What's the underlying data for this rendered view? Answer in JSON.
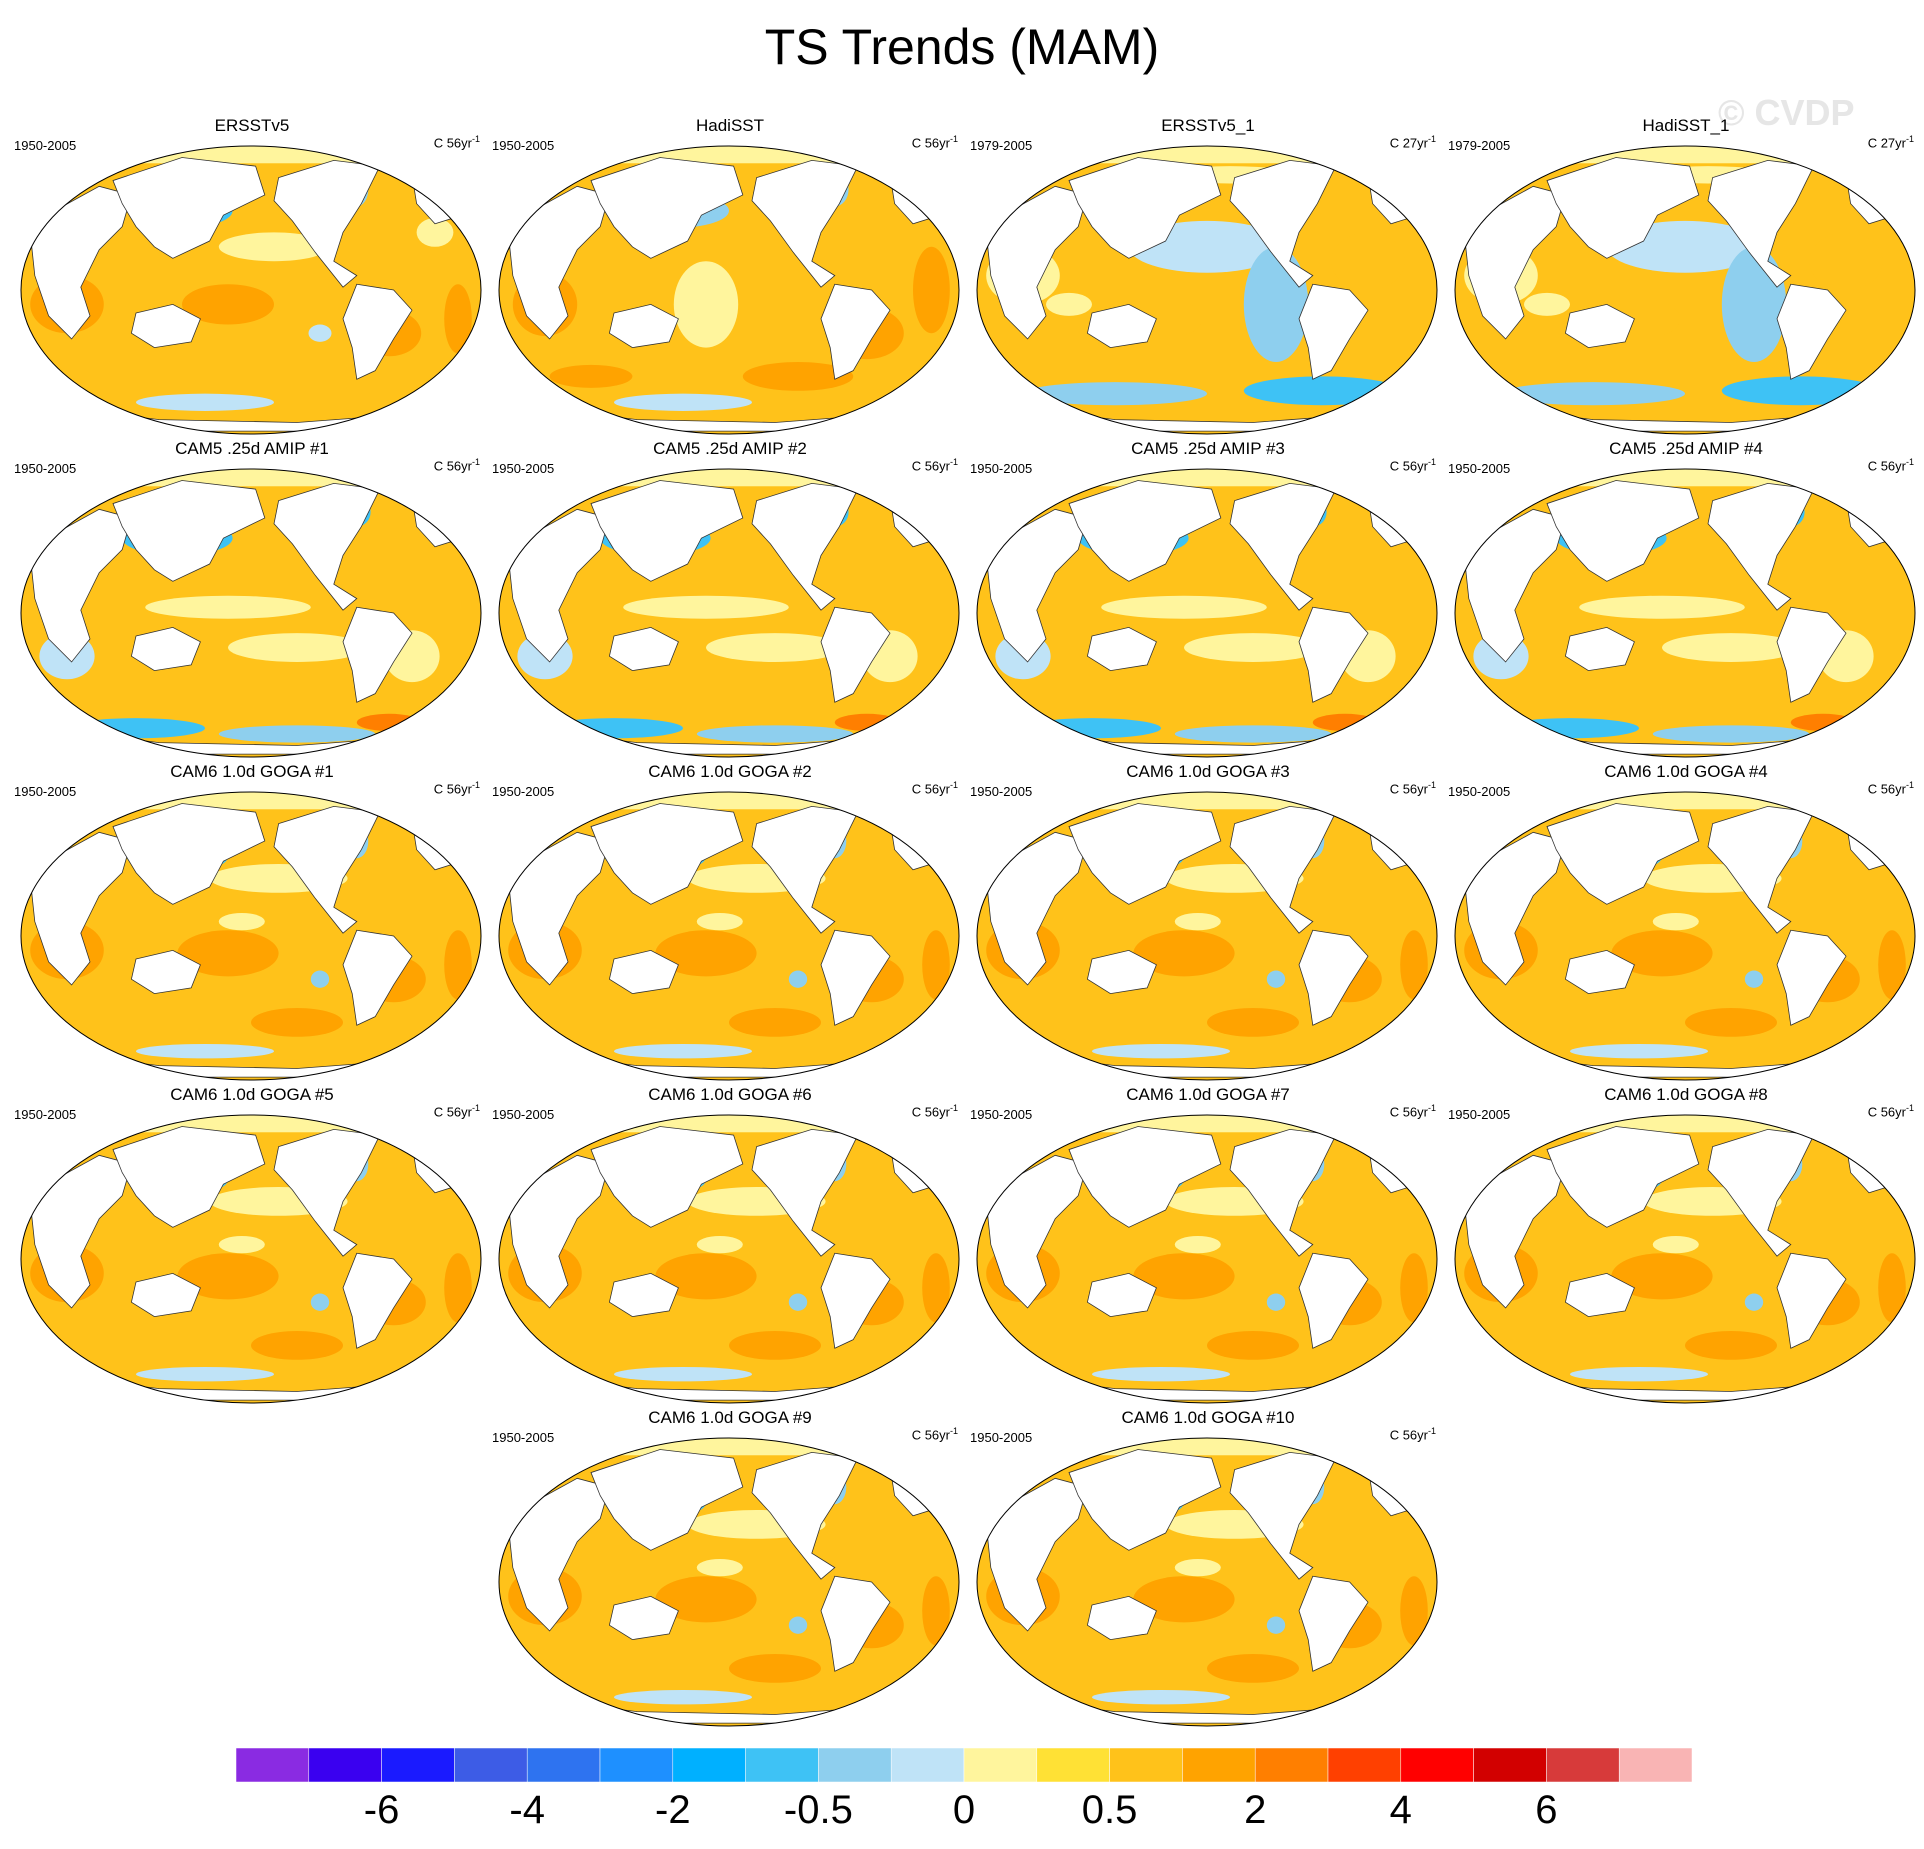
{
  "title": "TS Trends (MAM)",
  "watermark": "© CVDP",
  "panels": [
    {
      "title": "ERSSTv5",
      "period": "1950-2005",
      "units": "C 56yr",
      "units_exp": "-1",
      "pattern": "obs1"
    },
    {
      "title": "HadiSST",
      "period": "1950-2005",
      "units": "C 56yr",
      "units_exp": "-1",
      "pattern": "obs2"
    },
    {
      "title": "ERSSTv5_1",
      "period": "1979-2005",
      "units": "C 27yr",
      "units_exp": "-1",
      "pattern": "short"
    },
    {
      "title": "HadiSST_1",
      "period": "1979-2005",
      "units": "C 27yr",
      "units_exp": "-1",
      "pattern": "short"
    },
    {
      "title": "CAM5 .25d AMIP #1",
      "period": "1950-2005",
      "units": "C 56yr",
      "units_exp": "-1",
      "pattern": "amip"
    },
    {
      "title": "CAM5 .25d AMIP #2",
      "period": "1950-2005",
      "units": "C 56yr",
      "units_exp": "-1",
      "pattern": "amip"
    },
    {
      "title": "CAM5 .25d AMIP #3",
      "period": "1950-2005",
      "units": "C 56yr",
      "units_exp": "-1",
      "pattern": "amip"
    },
    {
      "title": "CAM5 .25d AMIP #4",
      "period": "1950-2005",
      "units": "C 56yr",
      "units_exp": "-1",
      "pattern": "amip"
    },
    {
      "title": "CAM6 1.0d GOGA #1",
      "period": "1950-2005",
      "units": "C 56yr",
      "units_exp": "-1",
      "pattern": "goga"
    },
    {
      "title": "CAM6 1.0d GOGA #2",
      "period": "1950-2005",
      "units": "C 56yr",
      "units_exp": "-1",
      "pattern": "goga"
    },
    {
      "title": "CAM6 1.0d GOGA #3",
      "period": "1950-2005",
      "units": "C 56yr",
      "units_exp": "-1",
      "pattern": "goga"
    },
    {
      "title": "CAM6 1.0d GOGA #4",
      "period": "1950-2005",
      "units": "C 56yr",
      "units_exp": "-1",
      "pattern": "goga"
    },
    {
      "title": "CAM6 1.0d GOGA #5",
      "period": "1950-2005",
      "units": "C 56yr",
      "units_exp": "-1",
      "pattern": "goga"
    },
    {
      "title": "CAM6 1.0d GOGA #6",
      "period": "1950-2005",
      "units": "C 56yr",
      "units_exp": "-1",
      "pattern": "goga"
    },
    {
      "title": "CAM6 1.0d GOGA #7",
      "period": "1950-2005",
      "units": "C 56yr",
      "units_exp": "-1",
      "pattern": "goga"
    },
    {
      "title": "CAM6 1.0d GOGA #8",
      "period": "1950-2005",
      "units": "C 56yr",
      "units_exp": "-1",
      "pattern": "goga"
    },
    {
      "title": "CAM6 1.0d GOGA #9",
      "period": "1950-2005",
      "units": "C 56yr",
      "units_exp": "-1",
      "pattern": "goga"
    },
    {
      "title": "CAM6 1.0d GOGA #10",
      "period": "1950-2005",
      "units": "C 56yr",
      "units_exp": "-1",
      "pattern": "goga"
    }
  ],
  "colorbar": {
    "colors": [
      "#8a2be2",
      "#3a00f0",
      "#1a1aff",
      "#3d5ce6",
      "#2e73f0",
      "#1e90ff",
      "#00b0ff",
      "#3ec2f5",
      "#8ecfee",
      "#bfe3f7",
      "#fff59d",
      "#ffe135",
      "#ffc21a",
      "#ffa300",
      "#ff7f00",
      "#ff4000",
      "#ff0000",
      "#d20000",
      "#d73a3a",
      "#f9b4b4"
    ],
    "labels": [
      {
        "text": "-6",
        "boundary": 2
      },
      {
        "text": "-4",
        "boundary": 4
      },
      {
        "text": "-2",
        "boundary": 6
      },
      {
        "text": "-0.5",
        "boundary": 8
      },
      {
        "text": "0",
        "boundary": 10
      },
      {
        "text": "0.5",
        "boundary": 12
      },
      {
        "text": "2",
        "boundary": 14
      },
      {
        "text": "4",
        "boundary": 16
      },
      {
        "text": "6",
        "boundary": 18
      }
    ]
  }
}
